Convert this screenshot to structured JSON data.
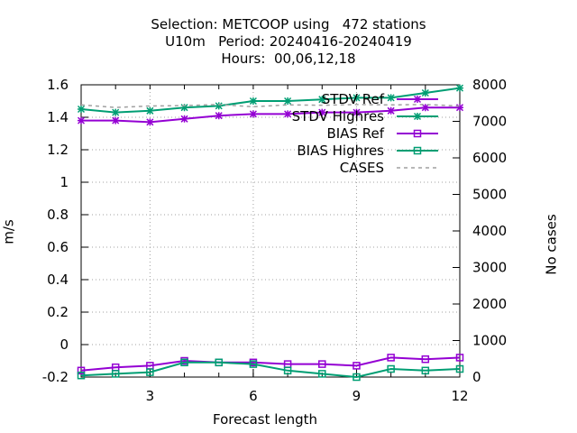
{
  "title_lines": [
    "Selection: METCOOP using   472 stations",
    "U10m   Period: 20240416-20240419",
    "Hours:  00,06,12,18"
  ],
  "chart_data": {
    "type": "line",
    "xlabel": "Forecast length",
    "ylabel": "m/s",
    "y2label": "No cases",
    "xlim": [
      1,
      12
    ],
    "ylim": [
      -0.2,
      1.6
    ],
    "y2lim": [
      0,
      8000
    ],
    "grid": true,
    "legend_position": "top-right",
    "x_ticks": [
      "3",
      "6",
      "9",
      "12"
    ],
    "y_ticks": [
      "-0.2",
      "0",
      "0.2",
      "0.4",
      "0.6",
      "0.8",
      "1",
      "1.2",
      "1.4",
      "1.6"
    ],
    "y2_ticks": [
      "0",
      "1000",
      "2000",
      "3000",
      "4000",
      "5000",
      "6000",
      "7000",
      "8000"
    ],
    "x": [
      1,
      2,
      3,
      4,
      5,
      6,
      7,
      8,
      9,
      10,
      11,
      12
    ],
    "series": [
      {
        "name": "STDV Ref",
        "axis": "y",
        "color": "#9400d3",
        "marker": "star",
        "values": [
          1.38,
          1.38,
          1.37,
          1.39,
          1.41,
          1.42,
          1.42,
          1.43,
          1.43,
          1.44,
          1.46,
          1.46
        ]
      },
      {
        "name": "STDV Highres",
        "axis": "y",
        "color": "#009e73",
        "marker": "star",
        "values": [
          1.45,
          1.43,
          1.44,
          1.46,
          1.47,
          1.5,
          1.5,
          1.51,
          1.52,
          1.52,
          1.55,
          1.58
        ]
      },
      {
        "name": "BIAS Ref",
        "axis": "y",
        "color": "#9400d3",
        "marker": "square",
        "values": [
          -0.16,
          -0.14,
          -0.13,
          -0.1,
          -0.11,
          -0.11,
          -0.12,
          -0.12,
          -0.13,
          -0.08,
          -0.09,
          -0.08
        ]
      },
      {
        "name": "BIAS Highres",
        "axis": "y",
        "color": "#009e73",
        "marker": "square",
        "values": [
          -0.19,
          -0.18,
          -0.17,
          -0.11,
          -0.11,
          -0.12,
          -0.16,
          -0.18,
          -0.2,
          -0.15,
          -0.16,
          -0.15
        ]
      },
      {
        "name": "CASES",
        "axis": "y2",
        "color": "#a0a0a0",
        "marker": "none",
        "dashed": true,
        "values": [
          7450,
          7380,
          7420,
          7430,
          7460,
          7400,
          7450,
          7440,
          7460,
          7450,
          7460,
          7420
        ]
      }
    ]
  }
}
